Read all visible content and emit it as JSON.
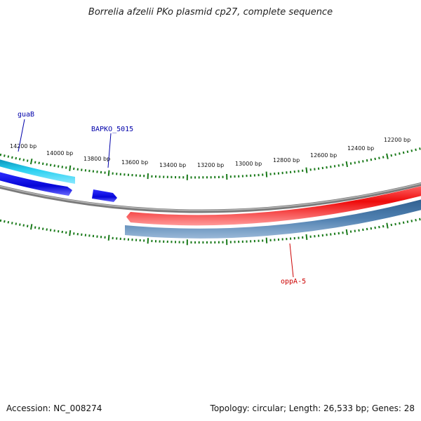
{
  "title": "Borrelia afzelii PKo plasmid cp27, complete sequence",
  "footer": {
    "accession": "Accession: NC_008274",
    "summary": "Topology: circular; Length: 26,533 bp; Genes: 28"
  },
  "ticks": [
    "14200 bp",
    "14000 bp",
    "13800 bp",
    "13600 bp",
    "13400 bp",
    "13200 bp",
    "13000 bp",
    "12800 bp",
    "12600 bp",
    "12400 bp",
    "12200 bp"
  ],
  "genes": [
    {
      "name": "guaB",
      "color": "#0000aa"
    },
    {
      "name": "BAPKO_5015",
      "color": "#0000aa"
    },
    {
      "name": "oppA-5",
      "color": "#cc0000"
    }
  ],
  "colors": {
    "backbone": "#808080",
    "tick_marks": "#1a7a1a",
    "feature_cyan": "#22ccee",
    "feature_blue": "#0a0ae0",
    "feature_red": "#ee1111",
    "feature_steel": "#4a7aaa"
  }
}
